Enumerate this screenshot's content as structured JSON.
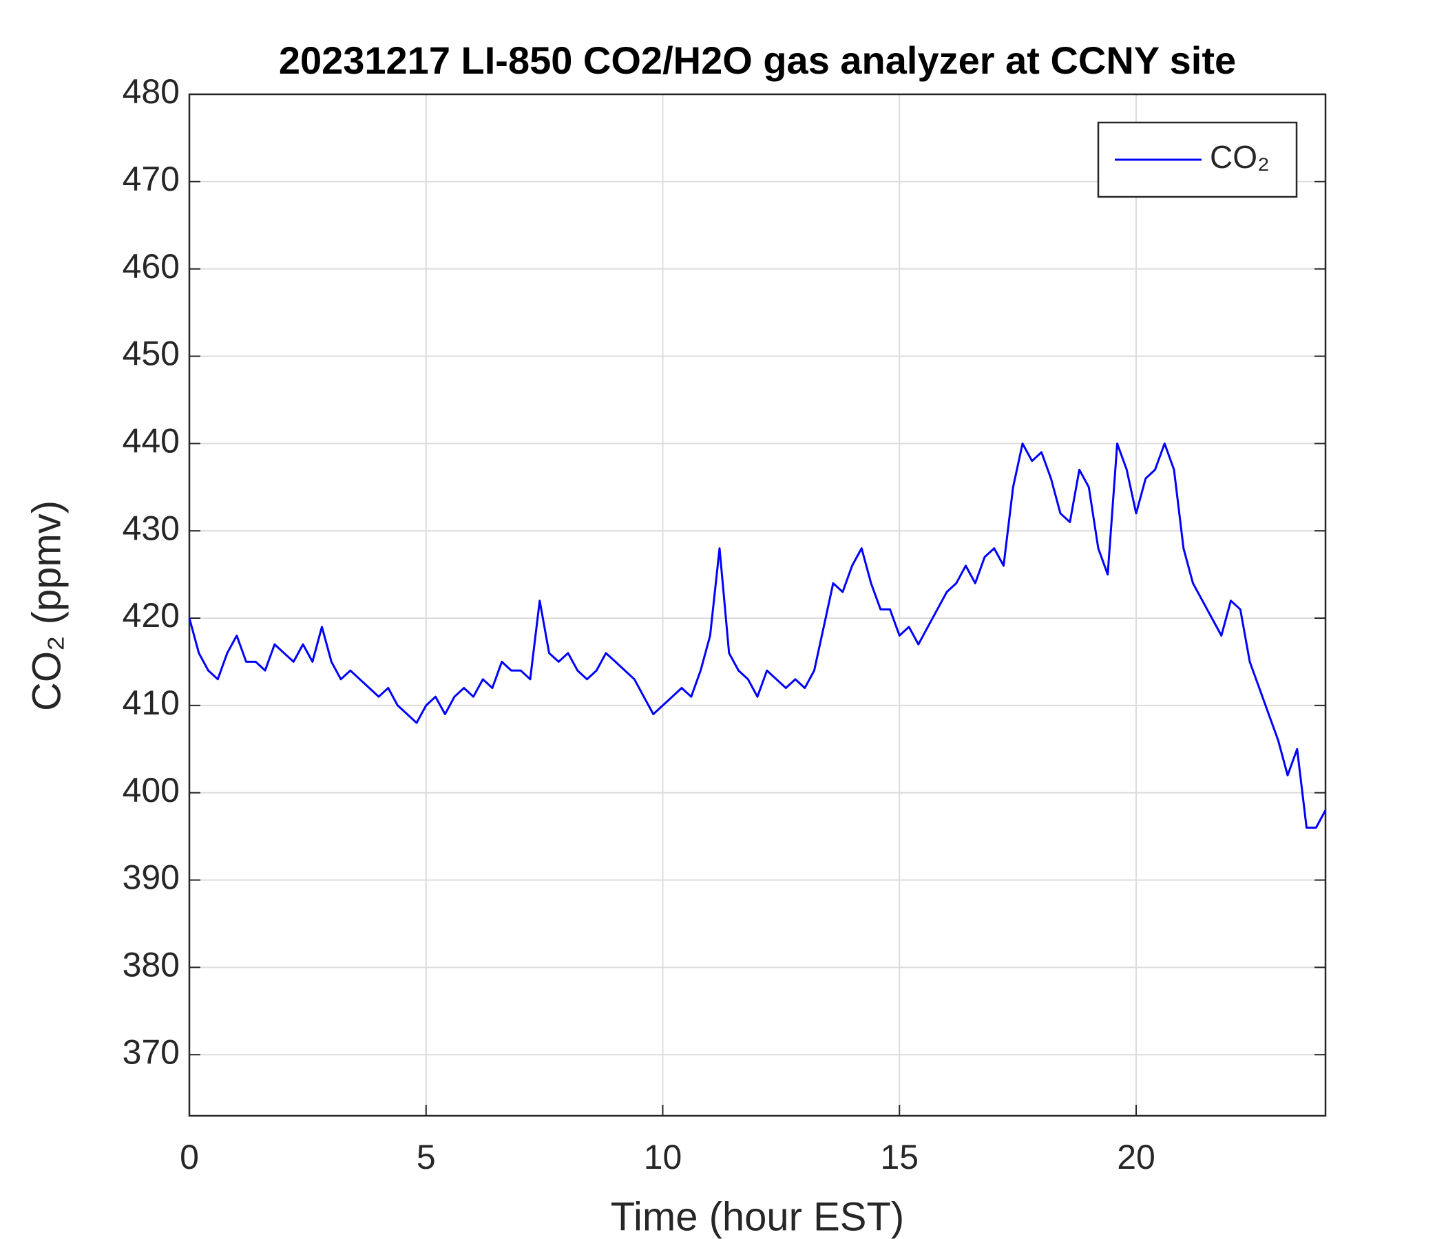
{
  "chart_data": {
    "type": "line",
    "title": "20231217 LI-850 CO2/H2O gas analyzer at CCNY site",
    "x_label": "Time (hour EST)",
    "y_label": "CO₂ (ppmv)",
    "xlim": [
      0,
      24
    ],
    "xticks": [
      0,
      5,
      10,
      15,
      20
    ],
    "ylim": [
      363,
      480
    ],
    "yticks": [
      370,
      380,
      390,
      400,
      410,
      420,
      430,
      440,
      450,
      460,
      470,
      480
    ],
    "grid": true,
    "legend": "upper right",
    "x": [
      0,
      0.2,
      0.4,
      0.6,
      0.8,
      1,
      1.2,
      1.4,
      1.6,
      1.8,
      2,
      2.2,
      2.4,
      2.6,
      2.8,
      3,
      3.2,
      3.4,
      3.6,
      3.8,
      4,
      4.2,
      4.4,
      4.6,
      4.8,
      5,
      5.2,
      5.4,
      5.6,
      5.8,
      6,
      6.2,
      6.4,
      6.6,
      6.8,
      7,
      7.2,
      7.4,
      7.6,
      7.8,
      8,
      8.2,
      8.4,
      8.6,
      8.8,
      9,
      9.2,
      9.4,
      9.6,
      9.8,
      10,
      10.2,
      10.4,
      10.6,
      10.8,
      11,
      11.2,
      11.4,
      11.6,
      11.8,
      12,
      12.2,
      12.4,
      12.6,
      12.8,
      13,
      13.2,
      13.4,
      13.6,
      13.8,
      14,
      14.2,
      14.4,
      14.6,
      14.8,
      15,
      15.2,
      15.4,
      15.6,
      15.8,
      16,
      16.2,
      16.4,
      16.6,
      16.8,
      17,
      17.2,
      17.4,
      17.6,
      17.8,
      18,
      18.2,
      18.4,
      18.6,
      18.8,
      19,
      19.2,
      19.4,
      19.6,
      19.8,
      20,
      20.2,
      20.4,
      20.6,
      20.8,
      21,
      21.2,
      21.4,
      21.6,
      21.8,
      22,
      22.2,
      22.4,
      22.6,
      22.8,
      23,
      23.2,
      23.4,
      23.6,
      23.8,
      24
    ],
    "series": [
      {
        "name": "CO₂",
        "color": "#0000ff",
        "values": [
          420,
          416,
          414,
          413,
          416,
          418,
          415,
          415,
          414,
          417,
          416,
          415,
          417,
          415,
          419,
          415,
          413,
          414,
          413,
          412,
          411,
          412,
          410,
          409,
          408,
          410,
          411,
          409,
          411,
          412,
          411,
          413,
          412,
          415,
          414,
          414,
          413,
          422,
          416,
          415,
          416,
          414,
          413,
          414,
          416,
          415,
          414,
          413,
          411,
          409,
          410,
          411,
          412,
          411,
          414,
          418,
          428,
          416,
          414,
          413,
          411,
          414,
          413,
          412,
          413,
          412,
          414,
          419,
          424,
          423,
          426,
          428,
          424,
          421,
          421,
          418,
          419,
          417,
          419,
          421,
          423,
          424,
          426,
          424,
          427,
          428,
          426,
          435,
          440,
          438,
          439,
          436,
          432,
          431,
          437,
          435,
          428,
          425,
          440,
          437,
          432,
          436,
          437,
          440,
          437,
          428,
          424,
          422,
          420,
          418,
          422,
          421,
          415,
          412,
          409,
          406,
          402,
          405,
          396,
          396,
          398
        ]
      }
    ]
  }
}
